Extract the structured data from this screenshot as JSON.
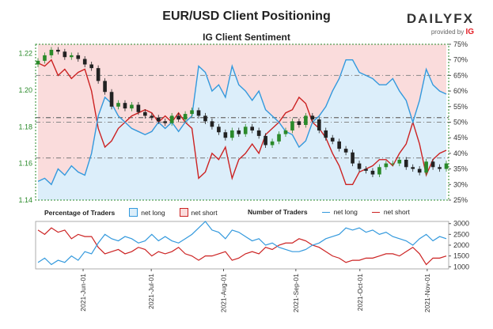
{
  "header": {
    "title": "EUR/USD Client Positioning",
    "subtitle": "IG Client Sentiment",
    "brand_name": "DAILYFX",
    "brand_tagline": "provided by",
    "brand_ig": "IG"
  },
  "colors": {
    "long": "#3399dd",
    "short": "#cc2222",
    "bg_long": "#dceefa",
    "bg_short": "#fadcdc",
    "candle_up": "#2a8a2a",
    "candle_down": "#222222"
  },
  "legend": {
    "pct_label": "Percentage of Traders",
    "num_label": "Number of Traders",
    "net_long": "net long",
    "net_short": "net short"
  },
  "chart_data": [
    {
      "type": "candlestick+line",
      "title": "IG Client Sentiment",
      "x_tick_labels": [
        "2021-Jun-01",
        "2021-Jul-01",
        "2021-Aug-01",
        "2021-Sep-01",
        "2021-Oct-01",
        "2021-Nov-01"
      ],
      "y_left_ticks": [
        "1.14",
        "1.16",
        "1.18",
        "1.20",
        "1.22"
      ],
      "y_left_range": [
        1.14,
        1.225
      ],
      "y_right_ticks": [
        "25%",
        "30%",
        "35%",
        "40%",
        "45%",
        "50%",
        "55%",
        "60%",
        "65%",
        "70%",
        "75%"
      ],
      "y_right_range": [
        25,
        75
      ],
      "reference_lines_left": [
        1.185,
        1.163
      ],
      "reference_lines_right": [
        50,
        65
      ],
      "price_close": [
        1.216,
        1.219,
        1.222,
        1.221,
        1.218,
        1.219,
        1.217,
        1.214,
        1.212,
        1.205,
        1.199,
        1.191,
        1.193,
        1.19,
        1.192,
        1.188,
        1.186,
        1.185,
        1.183,
        1.182,
        1.186,
        1.184,
        1.187,
        1.189,
        1.186,
        1.183,
        1.18,
        1.177,
        1.174,
        1.178,
        1.176,
        1.18,
        1.178,
        1.175,
        1.17,
        1.172,
        1.176,
        1.178,
        1.183,
        1.181,
        1.186,
        1.184,
        1.178,
        1.174,
        1.172,
        1.168,
        1.166,
        1.16,
        1.157,
        1.156,
        1.154,
        1.158,
        1.16,
        1.16,
        1.162,
        1.158,
        1.157,
        1.155,
        1.161,
        1.158,
        1.157,
        1.16
      ],
      "net_long_pct": [
        31,
        32,
        30,
        35,
        33,
        36,
        34,
        33,
        40,
        52,
        58,
        56,
        52,
        50,
        48,
        47,
        46,
        47,
        50,
        48,
        50,
        47,
        50,
        52,
        68,
        66,
        60,
        62,
        58,
        68,
        62,
        60,
        57,
        60,
        54,
        52,
        50,
        47,
        46,
        42,
        44,
        50,
        52,
        55,
        60,
        64,
        70,
        70,
        66,
        65,
        64,
        62,
        62,
        64,
        60,
        57,
        50,
        57,
        67,
        62,
        60,
        59
      ],
      "net_short_pct": [
        69,
        68,
        70,
        65,
        67,
        64,
        66,
        67,
        60,
        48,
        42,
        44,
        48,
        50,
        52,
        53,
        54,
        53,
        50,
        52,
        50,
        53,
        50,
        48,
        32,
        34,
        40,
        38,
        42,
        32,
        38,
        40,
        43,
        40,
        46,
        48,
        50,
        53,
        54,
        58,
        56,
        50,
        48,
        45,
        40,
        36,
        30,
        30,
        34,
        35,
        36,
        38,
        38,
        36,
        40,
        43,
        50,
        43,
        33,
        38,
        40,
        41
      ]
    },
    {
      "type": "line",
      "title": "Number of Traders",
      "y_ticks": [
        "1000",
        "1500",
        "2000",
        "2500",
        "3000"
      ],
      "y_range": [
        900,
        3100
      ],
      "net_long_count": [
        1200,
        1400,
        1100,
        1300,
        1200,
        1500,
        1300,
        1700,
        1600,
        2100,
        2500,
        2300,
        2200,
        2400,
        2300,
        2100,
        2200,
        2500,
        2200,
        2400,
        2200,
        2100,
        2300,
        2500,
        2800,
        3100,
        2700,
        2600,
        2300,
        2700,
        2600,
        2400,
        2200,
        2300,
        2000,
        2100,
        1900,
        1800,
        1700,
        1700,
        1800,
        2000,
        2100,
        2300,
        2400,
        2500,
        2800,
        2700,
        2800,
        2600,
        2700,
        2500,
        2600,
        2400,
        2300,
        2200,
        2000,
        2300,
        2500,
        2200,
        2400,
        2300
      ],
      "net_short_count": [
        2700,
        2500,
        2800,
        2600,
        2700,
        2300,
        2500,
        2400,
        2400,
        1900,
        1600,
        1700,
        1800,
        1600,
        1700,
        1900,
        1800,
        1500,
        1700,
        1600,
        1700,
        1900,
        1600,
        1500,
        1300,
        1500,
        1500,
        1600,
        1700,
        1300,
        1400,
        1600,
        1700,
        1600,
        1900,
        1800,
        2000,
        2100,
        2100,
        2300,
        2200,
        2000,
        1900,
        1700,
        1500,
        1400,
        1200,
        1300,
        1300,
        1400,
        1400,
        1500,
        1600,
        1600,
        1500,
        1700,
        1900,
        1600,
        1100,
        1400,
        1400,
        1500
      ]
    }
  ]
}
